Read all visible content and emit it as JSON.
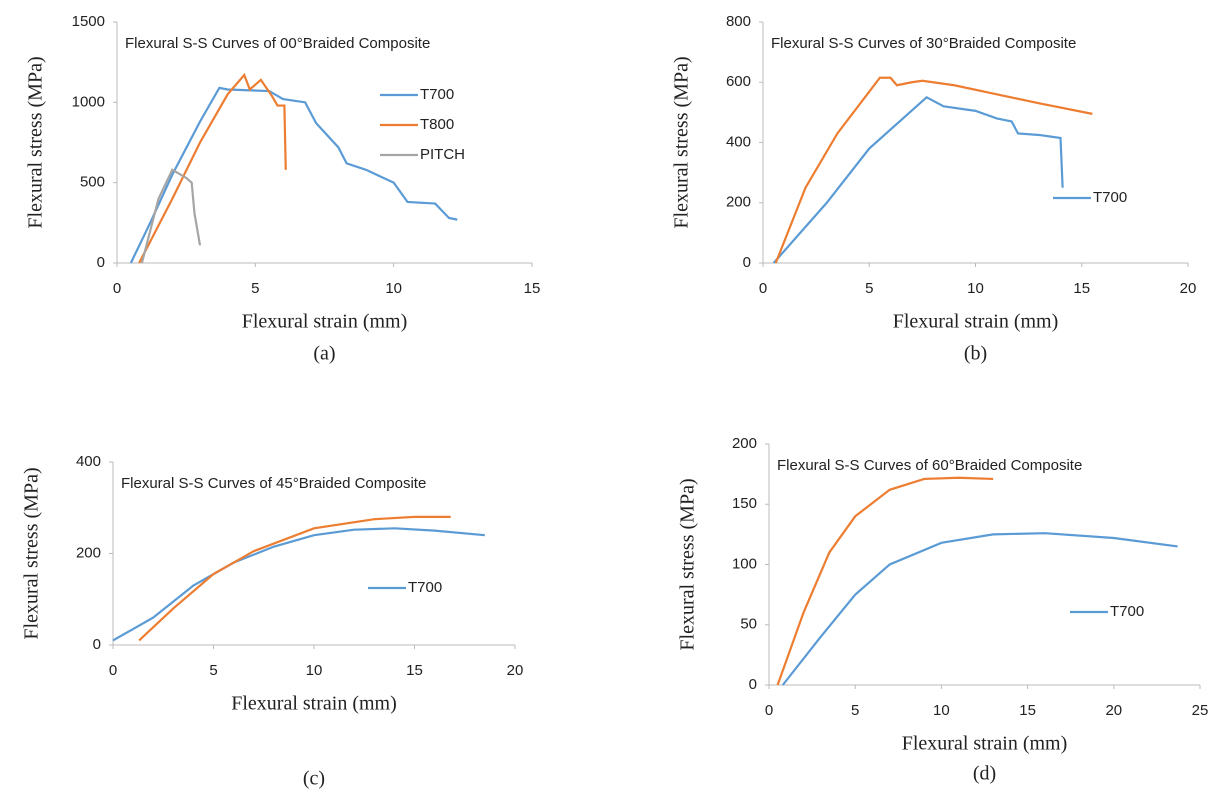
{
  "chart_data": [
    {
      "type": "line",
      "title": "Flexural  S-S Curves of 00°Braided Composite",
      "x_label": "Flexural strain (mm)",
      "y_label": "Flexural stress (MPa)",
      "caption": "(a)",
      "xlim": [
        0,
        15
      ],
      "ylim": [
        0,
        1500
      ],
      "xticks": [
        0,
        5,
        10,
        15
      ],
      "yticks": [
        0,
        500,
        1000,
        1500
      ],
      "series": [
        {
          "name": "T700",
          "color": "#5b9bd5",
          "x": [
            0.5,
            1.2,
            2,
            3,
            3.7,
            4,
            5.5,
            6,
            6.8,
            7.2,
            8,
            8.3,
            9,
            10,
            10.5,
            11.5,
            12,
            12.3
          ],
          "values": [
            0,
            250,
            550,
            880,
            1090,
            1080,
            1070,
            1020,
            1000,
            870,
            720,
            620,
            580,
            500,
            380,
            370,
            280,
            270
          ]
        },
        {
          "name": "T800",
          "color": "#ed7d31",
          "x": [
            0.8,
            2,
            3,
            4,
            4.6,
            4.8,
            5.2,
            5.6,
            5.8,
            6.05,
            6.1
          ],
          "values": [
            0,
            400,
            750,
            1050,
            1170,
            1080,
            1140,
            1040,
            980,
            980,
            580
          ]
        },
        {
          "name": "PITCH",
          "color": "#a5a5a5",
          "x": [
            0.9,
            1.5,
            2,
            2.5,
            2.7,
            2.8,
            3
          ],
          "values": [
            0,
            400,
            580,
            530,
            500,
            310,
            110
          ]
        }
      ]
    },
    {
      "type": "line",
      "title": "Flexural  S-S Curves of 30°Braided Composite",
      "x_label": "Flexural strain (mm)",
      "y_label": "Flexural stress (MPa)",
      "caption": "(b)",
      "xlim": [
        0,
        20
      ],
      "ylim": [
        0,
        800
      ],
      "xticks": [
        0,
        5,
        10,
        15,
        20
      ],
      "yticks": [
        0,
        200,
        400,
        600,
        800
      ],
      "series": [
        {
          "name": "T700",
          "color": "#5b9bd5",
          "x": [
            0.5,
            3,
            5,
            7.7,
            8.5,
            10,
            11,
            11.7,
            12,
            13,
            14,
            14.1
          ],
          "values": [
            0,
            200,
            380,
            550,
            520,
            505,
            480,
            470,
            430,
            425,
            415,
            250
          ]
        },
        {
          "color": "#ed7d31",
          "x": [
            0.6,
            2,
            3.5,
            5.5,
            6,
            6.3,
            7,
            7.5,
            9,
            11,
            13,
            15.5
          ],
          "values": [
            0,
            250,
            430,
            615,
            615,
            590,
            600,
            605,
            590,
            560,
            530,
            495
          ]
        }
      ]
    },
    {
      "type": "line",
      "title": "Flexural  S-S Curves of 45°Braided Composite",
      "x_label": "Flexural strain (mm)",
      "y_label": "Flexural stress (MPa)",
      "caption": "(c)",
      "xlim": [
        0,
        20
      ],
      "ylim": [
        0,
        400
      ],
      "xticks": [
        0,
        5,
        10,
        15,
        20
      ],
      "yticks": [
        0,
        200,
        400
      ],
      "series": [
        {
          "name": "T700",
          "color": "#5b9bd5",
          "x": [
            0,
            2,
            4,
            6,
            8,
            10,
            12,
            14,
            16,
            18.5
          ],
          "values": [
            10,
            60,
            130,
            180,
            215,
            240,
            252,
            255,
            250,
            240
          ]
        },
        {
          "color": "#ed7d31",
          "x": [
            1.3,
            3,
            5,
            7,
            10,
            13,
            15,
            16.8
          ],
          "values": [
            10,
            80,
            155,
            205,
            255,
            275,
            280,
            280
          ]
        }
      ]
    },
    {
      "type": "line",
      "title": "Flexural  S-S Curves of 60°Braided Composite",
      "x_label": "Flexural strain (mm)",
      "y_label": "Flexural stress (MPa)",
      "caption": "(d)",
      "xlim": [
        0,
        25
      ],
      "ylim": [
        0,
        200
      ],
      "xticks": [
        0,
        5,
        10,
        15,
        20,
        25
      ],
      "yticks": [
        0,
        50,
        100,
        150,
        200
      ],
      "series": [
        {
          "name": "T700",
          "color": "#5b9bd5",
          "x": [
            0.8,
            3,
            5,
            7,
            10,
            13,
            16,
            20,
            23.7
          ],
          "values": [
            0,
            40,
            75,
            100,
            118,
            125,
            126,
            122,
            115
          ]
        },
        {
          "color": "#ed7d31",
          "x": [
            0.5,
            2,
            3.5,
            5,
            7,
            9,
            11,
            13
          ],
          "values": [
            0,
            60,
            110,
            140,
            162,
            171,
            172,
            171
          ]
        }
      ]
    }
  ]
}
